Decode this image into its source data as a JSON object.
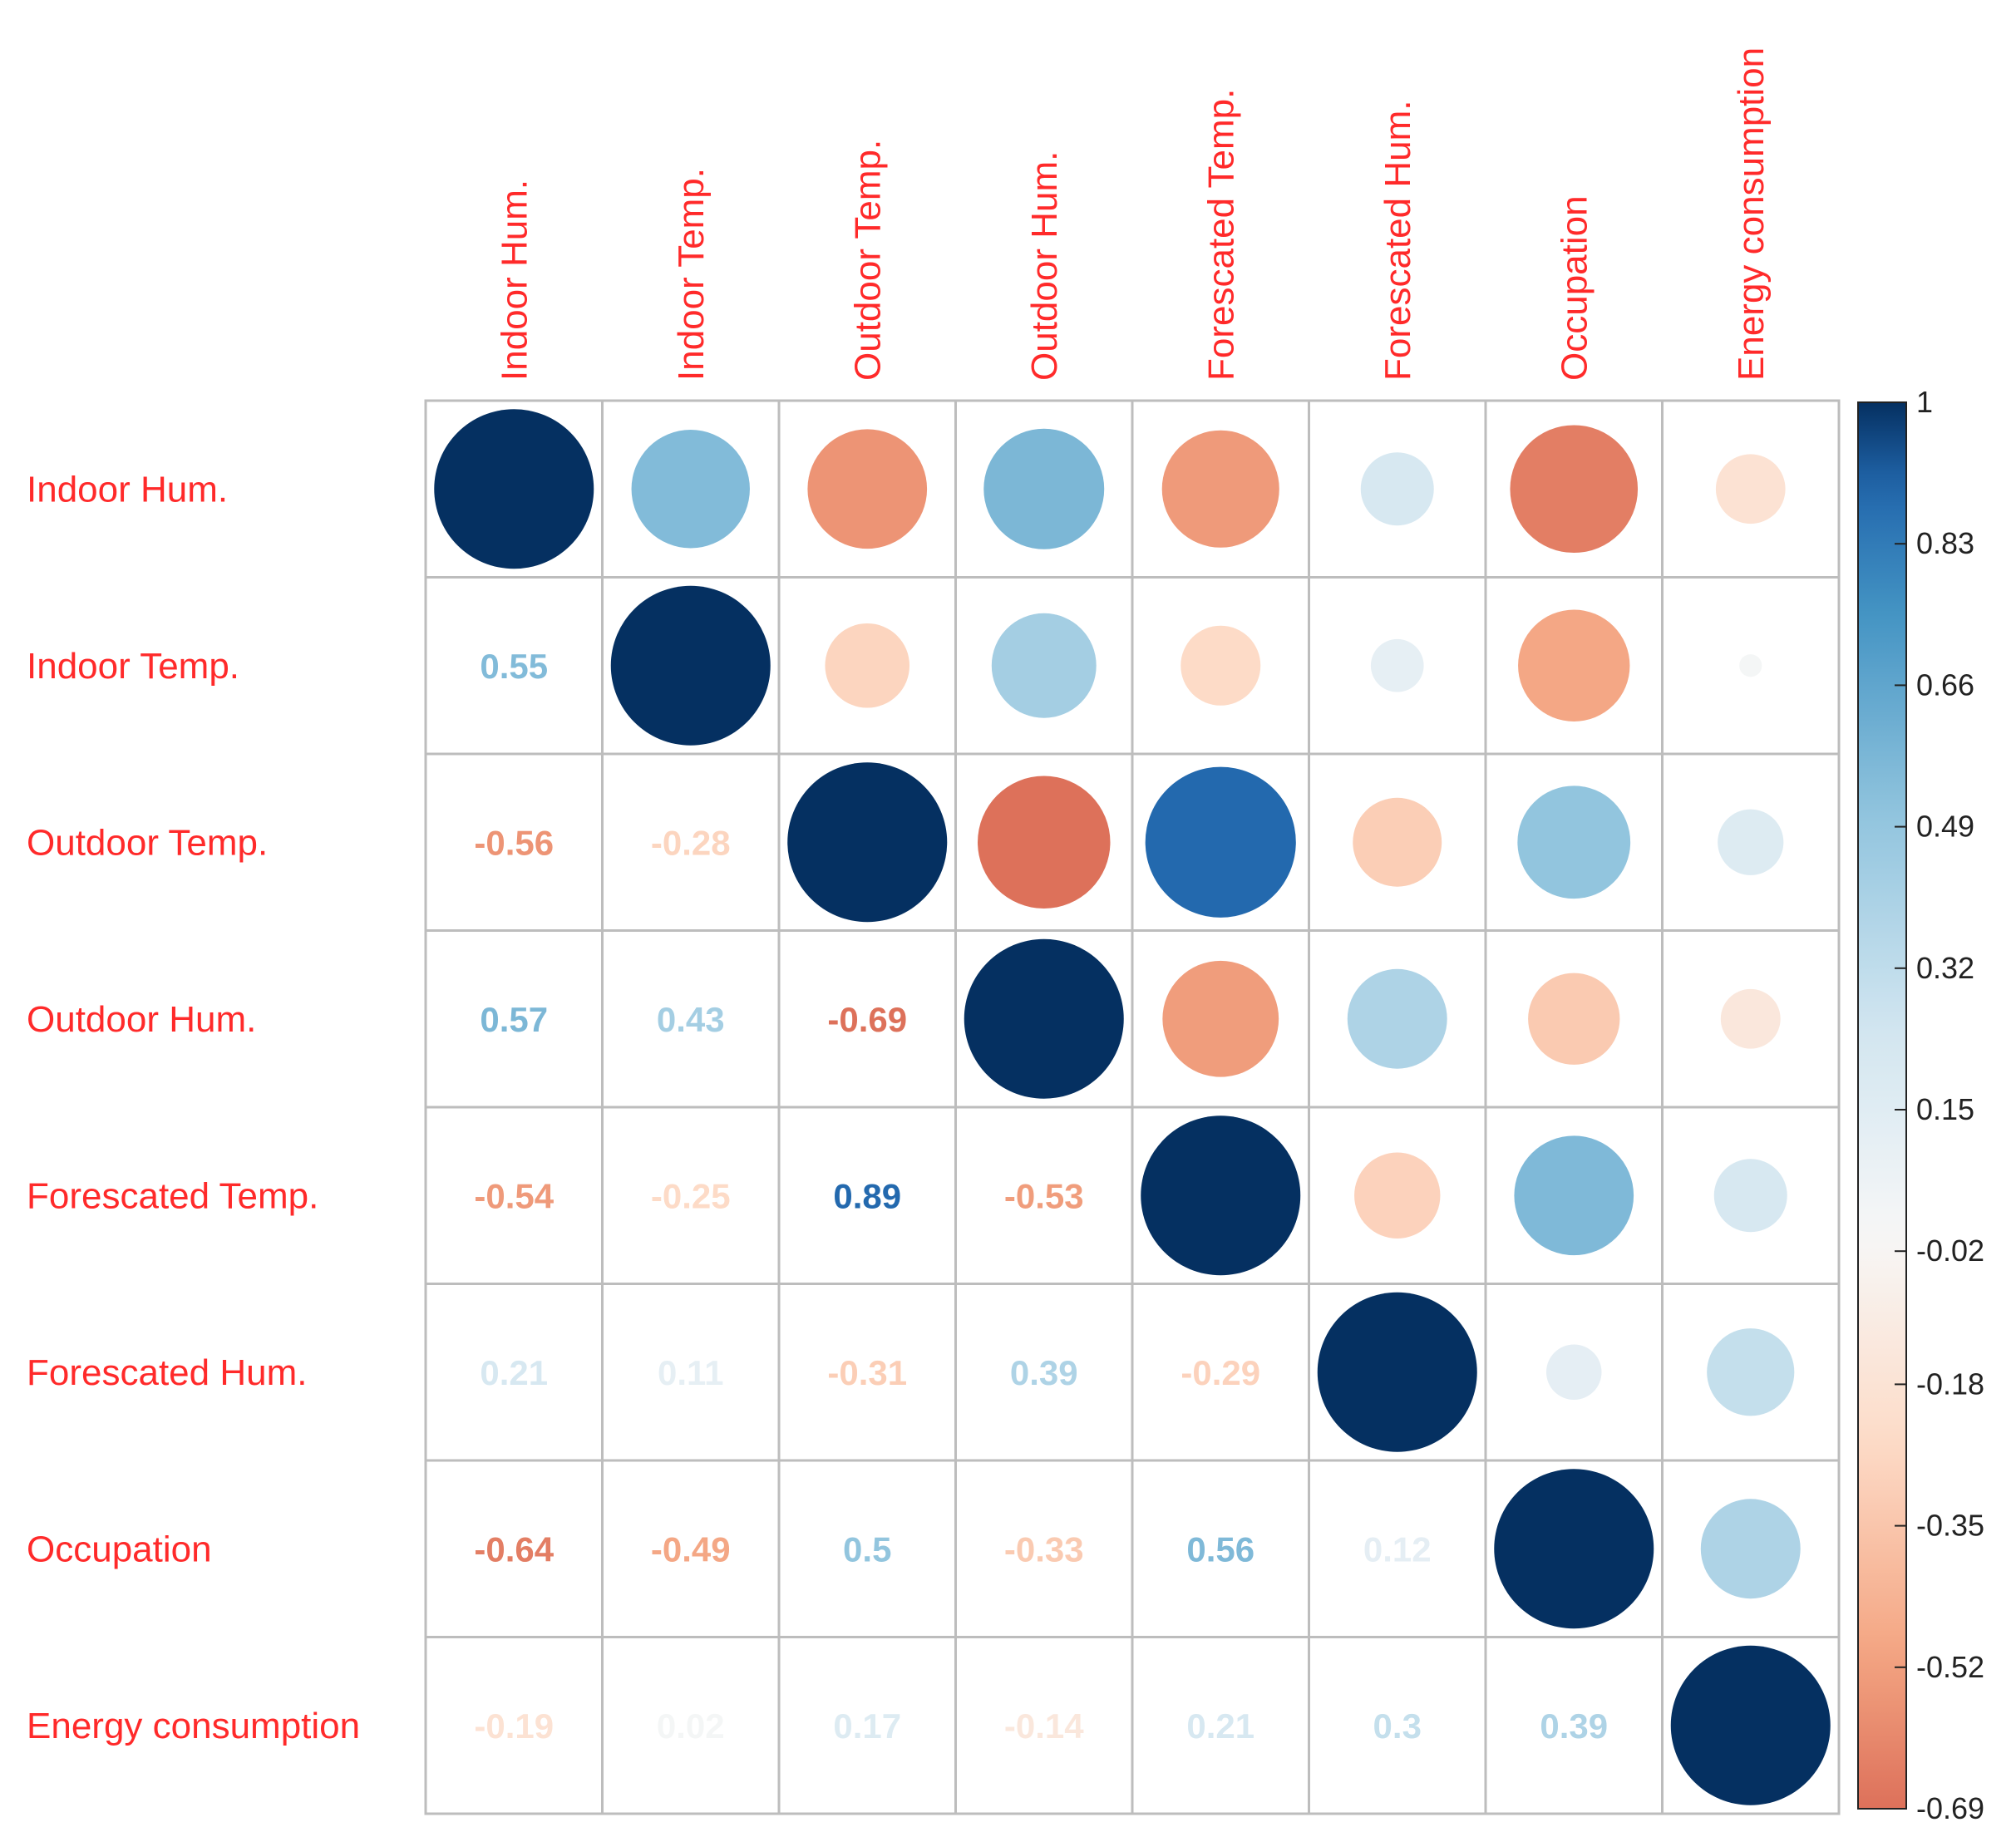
{
  "chart_data": {
    "type": "heatmap",
    "style": "correlation-matrix (circles upper triangle, numbers lower triangle)",
    "variables": [
      "Indoor Hum.",
      "Indoor Temp.",
      "Outdoor Temp.",
      "Outdoor Hum.",
      "Forescated Temp.",
      "Forescated Hum.",
      "Occupation",
      "Energy consumption"
    ],
    "matrix": [
      [
        1.0,
        0.55,
        -0.56,
        0.57,
        -0.54,
        0.21,
        -0.64,
        -0.19
      ],
      [
        0.55,
        1.0,
        -0.28,
        0.43,
        -0.25,
        0.11,
        -0.49,
        0.02
      ],
      [
        -0.56,
        -0.28,
        1.0,
        -0.69,
        0.89,
        -0.31,
        0.5,
        0.17
      ],
      [
        0.57,
        0.43,
        -0.69,
        1.0,
        -0.53,
        0.39,
        -0.33,
        -0.14
      ],
      [
        -0.54,
        -0.25,
        0.89,
        -0.53,
        1.0,
        -0.29,
        0.56,
        0.21
      ],
      [
        0.21,
        0.11,
        -0.31,
        0.39,
        -0.29,
        1.0,
        0.12,
        0.3
      ],
      [
        -0.64,
        -0.49,
        0.5,
        -0.33,
        0.56,
        0.12,
        1.0,
        0.39
      ],
      [
        -0.19,
        0.02,
        0.17,
        -0.14,
        0.21,
        0.3,
        0.39,
        1.0
      ]
    ],
    "lower_labels": [
      [],
      [
        "0.55"
      ],
      [
        "-0.56",
        "-0.28"
      ],
      [
        "0.57",
        "0.43",
        "-0.69"
      ],
      [
        "-0.54",
        "-0.25",
        "0.89",
        "-0.53"
      ],
      [
        "0.21",
        "0.11",
        "-0.31",
        "0.39",
        "-0.29"
      ],
      [
        "-0.64",
        "-0.49",
        "0.5",
        "-0.33",
        "0.56",
        "0.12"
      ],
      [
        "-0.19",
        "0.02",
        "0.17",
        "-0.14",
        "0.21",
        "0.3",
        "0.39"
      ]
    ],
    "colorbar": {
      "range": [
        -0.69,
        1
      ],
      "ticks": [
        "1",
        "0.83",
        "0.66",
        "0.49",
        "0.32",
        "0.15",
        "-0.02",
        "-0.18",
        "-0.35",
        "-0.52",
        "-0.69"
      ],
      "tick_values": [
        1,
        0.83,
        0.66,
        0.49,
        0.32,
        0.15,
        -0.02,
        -0.18,
        -0.35,
        -0.52,
        -0.69
      ]
    },
    "colors": {
      "neg_strong": "#b2182b",
      "neg_mid": "#d6604d",
      "neg_light": "#f4a582",
      "neg_pale": "#fddbc7",
      "neutral": "#f7f7f7",
      "pos_pale": "#d1e5f0",
      "pos_light": "#92c5de",
      "pos_mid": "#4393c3",
      "pos_strong": "#2166ac",
      "pos_max": "#053061",
      "label": "#ff2a2a",
      "grid": "#bdbdbd"
    }
  }
}
